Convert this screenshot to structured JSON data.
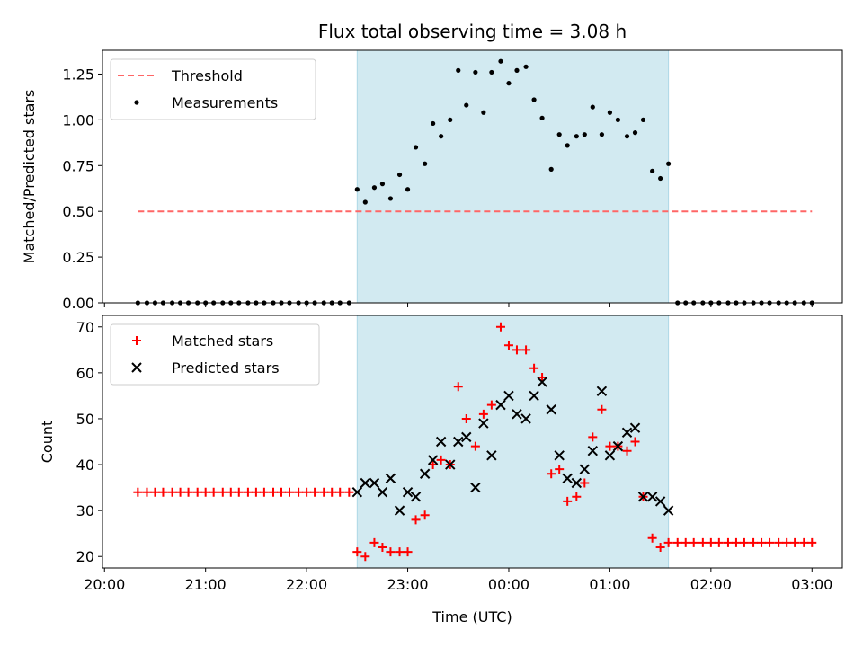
{
  "chart_data": [
    {
      "type": "scatter",
      "title": "Flux total observing time = 3.08 h",
      "ylabel": "Matched/Predicted stars",
      "ylim": [
        0,
        1.38
      ],
      "yticks": [
        "0.00",
        "0.25",
        "0.50",
        "0.75",
        "1.00",
        "1.25"
      ],
      "shaded_region": {
        "x": [
          22.5,
          25.58
        ],
        "color": "#add8e6"
      },
      "legend": {
        "placement": "top-left",
        "entries": [
          "Threshold",
          "Measurements"
        ]
      },
      "threshold": {
        "name": "Threshold",
        "value": 0.5,
        "x_range": [
          20.33,
          27.0
        ],
        "color": "#ff6666"
      },
      "series": [
        {
          "name": "Measurements",
          "color": "#000000",
          "points": [
            [
              20.33,
              0
            ],
            [
              20.42,
              0
            ],
            [
              20.5,
              0
            ],
            [
              20.58,
              0
            ],
            [
              20.67,
              0
            ],
            [
              20.75,
              0
            ],
            [
              20.83,
              0
            ],
            [
              20.92,
              0
            ],
            [
              21.0,
              0
            ],
            [
              21.08,
              0
            ],
            [
              21.17,
              0
            ],
            [
              21.25,
              0
            ],
            [
              21.33,
              0
            ],
            [
              21.42,
              0
            ],
            [
              21.5,
              0
            ],
            [
              21.58,
              0
            ],
            [
              21.67,
              0
            ],
            [
              21.75,
              0
            ],
            [
              21.83,
              0
            ],
            [
              21.92,
              0
            ],
            [
              22.0,
              0
            ],
            [
              22.08,
              0
            ],
            [
              22.17,
              0
            ],
            [
              22.25,
              0
            ],
            [
              22.33,
              0
            ],
            [
              22.42,
              0
            ],
            [
              22.5,
              0.62
            ],
            [
              22.58,
              0.55
            ],
            [
              22.67,
              0.63
            ],
            [
              22.75,
              0.65
            ],
            [
              22.83,
              0.57
            ],
            [
              22.92,
              0.7
            ],
            [
              23.0,
              0.62
            ],
            [
              23.08,
              0.85
            ],
            [
              23.17,
              0.76
            ],
            [
              23.25,
              0.98
            ],
            [
              23.33,
              0.91
            ],
            [
              23.42,
              1.0
            ],
            [
              23.5,
              1.27
            ],
            [
              23.58,
              1.08
            ],
            [
              23.67,
              1.26
            ],
            [
              23.75,
              1.04
            ],
            [
              23.83,
              1.26
            ],
            [
              23.92,
              1.32
            ],
            [
              24.0,
              1.2
            ],
            [
              24.08,
              1.27
            ],
            [
              24.17,
              1.29
            ],
            [
              24.25,
              1.11
            ],
            [
              24.33,
              1.01
            ],
            [
              24.42,
              0.73
            ],
            [
              24.5,
              0.92
            ],
            [
              24.58,
              0.86
            ],
            [
              24.67,
              0.91
            ],
            [
              24.75,
              0.92
            ],
            [
              24.83,
              1.07
            ],
            [
              24.92,
              0.92
            ],
            [
              25.0,
              1.04
            ],
            [
              25.08,
              1.0
            ],
            [
              25.17,
              0.91
            ],
            [
              25.25,
              0.93
            ],
            [
              25.33,
              1.0
            ],
            [
              25.42,
              0.72
            ],
            [
              25.5,
              0.68
            ],
            [
              25.58,
              0.76
            ],
            [
              25.67,
              0
            ],
            [
              25.75,
              0
            ],
            [
              25.83,
              0
            ],
            [
              25.92,
              0
            ],
            [
              26.0,
              0
            ],
            [
              26.08,
              0
            ],
            [
              26.17,
              0
            ],
            [
              26.25,
              0
            ],
            [
              26.33,
              0
            ],
            [
              26.42,
              0
            ],
            [
              26.5,
              0
            ],
            [
              26.58,
              0
            ],
            [
              26.67,
              0
            ],
            [
              26.75,
              0
            ],
            [
              26.83,
              0
            ],
            [
              26.92,
              0
            ],
            [
              27.0,
              0
            ]
          ]
        }
      ]
    },
    {
      "type": "scatter",
      "xlabel": "Time (UTC)",
      "ylabel": "Count",
      "ylim": [
        17.5,
        72.5
      ],
      "yticks": [
        "20",
        "30",
        "40",
        "50",
        "60",
        "70"
      ],
      "xticks": [
        "20:00",
        "21:00",
        "22:00",
        "23:00",
        "00:00",
        "01:00",
        "02:00",
        "03:00"
      ],
      "shaded_region": {
        "x": [
          22.5,
          25.58
        ],
        "color": "#add8e6"
      },
      "legend": {
        "placement": "top-left",
        "entries": [
          "Matched stars",
          "Predicted stars"
        ]
      },
      "series": [
        {
          "name": "Matched stars",
          "marker": "plus",
          "color": "#ff0000",
          "points": [
            [
              20.33,
              34
            ],
            [
              20.42,
              34
            ],
            [
              20.5,
              34
            ],
            [
              20.58,
              34
            ],
            [
              20.67,
              34
            ],
            [
              20.75,
              34
            ],
            [
              20.83,
              34
            ],
            [
              20.92,
              34
            ],
            [
              21.0,
              34
            ],
            [
              21.08,
              34
            ],
            [
              21.17,
              34
            ],
            [
              21.25,
              34
            ],
            [
              21.33,
              34
            ],
            [
              21.42,
              34
            ],
            [
              21.5,
              34
            ],
            [
              21.58,
              34
            ],
            [
              21.67,
              34
            ],
            [
              21.75,
              34
            ],
            [
              21.83,
              34
            ],
            [
              21.92,
              34
            ],
            [
              22.0,
              34
            ],
            [
              22.08,
              34
            ],
            [
              22.17,
              34
            ],
            [
              22.25,
              34
            ],
            [
              22.33,
              34
            ],
            [
              22.42,
              34
            ],
            [
              22.5,
              21
            ],
            [
              22.58,
              20
            ],
            [
              22.67,
              23
            ],
            [
              22.75,
              22
            ],
            [
              22.83,
              21
            ],
            [
              22.92,
              21
            ],
            [
              23.0,
              21
            ],
            [
              23.08,
              28
            ],
            [
              23.17,
              29
            ],
            [
              23.25,
              40
            ],
            [
              23.33,
              41
            ],
            [
              23.42,
              40
            ],
            [
              23.5,
              57
            ],
            [
              23.58,
              50
            ],
            [
              23.67,
              44
            ],
            [
              23.75,
              51
            ],
            [
              23.83,
              53
            ],
            [
              23.92,
              70
            ],
            [
              24.0,
              66
            ],
            [
              24.08,
              65
            ],
            [
              24.17,
              65
            ],
            [
              24.25,
              61
            ],
            [
              24.33,
              59
            ],
            [
              24.42,
              38
            ],
            [
              24.5,
              39
            ],
            [
              24.58,
              32
            ],
            [
              24.67,
              33
            ],
            [
              24.75,
              36
            ],
            [
              24.83,
              46
            ],
            [
              24.92,
              52
            ],
            [
              25.0,
              44
            ],
            [
              25.08,
              44
            ],
            [
              25.17,
              43
            ],
            [
              25.25,
              45
            ],
            [
              25.33,
              33
            ],
            [
              25.42,
              24
            ],
            [
              25.5,
              22
            ],
            [
              25.58,
              23
            ],
            [
              25.67,
              23
            ],
            [
              25.75,
              23
            ],
            [
              25.83,
              23
            ],
            [
              25.92,
              23
            ],
            [
              26.0,
              23
            ],
            [
              26.08,
              23
            ],
            [
              26.17,
              23
            ],
            [
              26.25,
              23
            ],
            [
              26.33,
              23
            ],
            [
              26.42,
              23
            ],
            [
              26.5,
              23
            ],
            [
              26.58,
              23
            ],
            [
              26.67,
              23
            ],
            [
              26.75,
              23
            ],
            [
              26.83,
              23
            ],
            [
              26.92,
              23
            ],
            [
              27.0,
              23
            ]
          ]
        },
        {
          "name": "Predicted stars",
          "marker": "x",
          "color": "#000000",
          "points": [
            [
              22.5,
              34
            ],
            [
              22.58,
              36
            ],
            [
              22.67,
              36
            ],
            [
              22.75,
              34
            ],
            [
              22.83,
              37
            ],
            [
              22.92,
              30
            ],
            [
              23.0,
              34
            ],
            [
              23.08,
              33
            ],
            [
              23.17,
              38
            ],
            [
              23.25,
              41
            ],
            [
              23.33,
              45
            ],
            [
              23.42,
              40
            ],
            [
              23.5,
              45
            ],
            [
              23.58,
              46
            ],
            [
              23.67,
              35
            ],
            [
              23.75,
              49
            ],
            [
              23.83,
              42
            ],
            [
              23.92,
              53
            ],
            [
              24.0,
              55
            ],
            [
              24.08,
              51
            ],
            [
              24.17,
              50
            ],
            [
              24.25,
              55
            ],
            [
              24.33,
              58
            ],
            [
              24.42,
              52
            ],
            [
              24.5,
              42
            ],
            [
              24.58,
              37
            ],
            [
              24.67,
              36
            ],
            [
              24.75,
              39
            ],
            [
              24.83,
              43
            ],
            [
              24.92,
              56
            ],
            [
              25.0,
              42
            ],
            [
              25.08,
              44
            ],
            [
              25.17,
              47
            ],
            [
              25.25,
              48
            ],
            [
              25.33,
              33
            ],
            [
              25.42,
              33
            ],
            [
              25.5,
              32
            ],
            [
              25.58,
              30
            ]
          ]
        }
      ]
    }
  ]
}
